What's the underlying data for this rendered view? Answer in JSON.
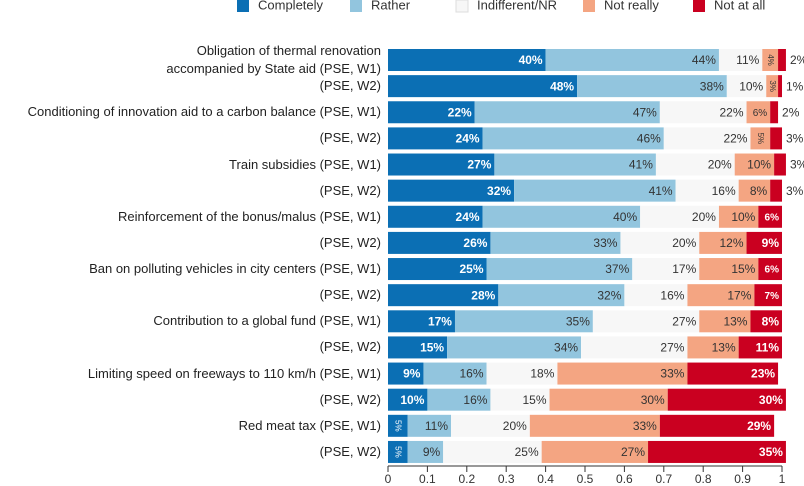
{
  "chart_data": {
    "type": "stacked-barh",
    "categories": [
      "Obligation of thermal renovation\naccompanied by State aid (PSE, W1)",
      "(PSE, W2)",
      "Conditioning of innovation aid to a carbon balance (PSE, W1)",
      "(PSE, W2)",
      "Train subsidies (PSE, W1)",
      "(PSE, W2)",
      "Reinforcement of the bonus/malus (PSE, W1)",
      "(PSE, W2)",
      "Ban on polluting vehicles in city centers (PSE, W1)",
      "(PSE, W2)",
      "Contribution to a global fund (PSE, W1)",
      "(PSE, W2)",
      "Limiting speed on freeways to 110 km/h (PSE, W1)",
      "(PSE, W2)",
      "Red meat tax (PSE, W1)",
      "(PSE, W2)"
    ],
    "series": [
      {
        "name": "Completely",
        "color": "#0b6fb4",
        "values": [
          0.4,
          0.48,
          0.22,
          0.24,
          0.27,
          0.32,
          0.24,
          0.26,
          0.25,
          0.28,
          0.17,
          0.15,
          0.09,
          0.1,
          0.05,
          0.05
        ],
        "value_labels": [
          "40%",
          "48%",
          "22%",
          "24%",
          "27%",
          "32%",
          "24%",
          "26%",
          "25%",
          "28%",
          "17%",
          "15%",
          "9%",
          "10%",
          "5%",
          "5%"
        ]
      },
      {
        "name": "Rather",
        "color": "#92c5de",
        "values": [
          0.44,
          0.38,
          0.47,
          0.46,
          0.41,
          0.41,
          0.4,
          0.33,
          0.37,
          0.32,
          0.35,
          0.34,
          0.16,
          0.16,
          0.11,
          0.09
        ],
        "value_labels": [
          "44%",
          "38%",
          "47%",
          "46%",
          "41%",
          "41%",
          "40%",
          "33%",
          "37%",
          "32%",
          "35%",
          "34%",
          "16%",
          "16%",
          "11%",
          "9%"
        ]
      },
      {
        "name": "Indifferent/NR",
        "color": "#f7f7f7",
        "values": [
          0.11,
          0.1,
          0.22,
          0.22,
          0.2,
          0.16,
          0.2,
          0.2,
          0.17,
          0.16,
          0.27,
          0.27,
          0.18,
          0.15,
          0.2,
          0.25
        ],
        "value_labels": [
          "11%",
          "10%",
          "22%",
          "22%",
          "20%",
          "16%",
          "20%",
          "20%",
          "17%",
          "16%",
          "27%",
          "27%",
          "18%",
          "15%",
          "20%",
          "25%"
        ]
      },
      {
        "name": "Not really",
        "color": "#f4a582",
        "values": [
          0.04,
          0.03,
          0.06,
          0.05,
          0.1,
          0.08,
          0.1,
          0.12,
          0.15,
          0.17,
          0.13,
          0.13,
          0.33,
          0.3,
          0.33,
          0.27
        ],
        "value_labels": [
          "4%",
          "3%",
          "6%",
          "5%",
          "10%",
          "8%",
          "10%",
          "12%",
          "15%",
          "17%",
          "13%",
          "13%",
          "33%",
          "30%",
          "33%",
          "27%"
        ]
      },
      {
        "name": "Not at all",
        "color": "#ca0020",
        "values": [
          0.02,
          0.01,
          0.02,
          0.03,
          0.03,
          0.03,
          0.06,
          0.09,
          0.06,
          0.07,
          0.08,
          0.11,
          0.23,
          0.3,
          0.29,
          0.35
        ],
        "value_labels": [
          "2%",
          "1%",
          "2%",
          "3%",
          "3%",
          "3%",
          "6%",
          "9%",
          "6%",
          "7%",
          "8%",
          "11%",
          "23%",
          "30%",
          "29%",
          "35%"
        ]
      }
    ],
    "xlim": [
      0,
      1
    ],
    "xticks": [
      0,
      0.1,
      0.2,
      0.3,
      0.4,
      0.5,
      0.6,
      0.7,
      0.8,
      0.9,
      1
    ]
  }
}
